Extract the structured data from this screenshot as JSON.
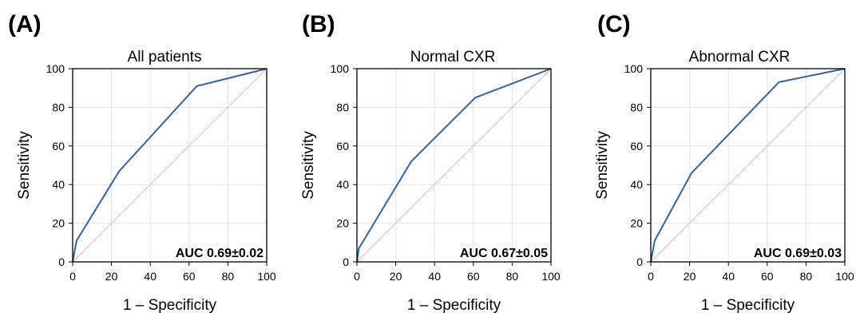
{
  "chart_data": [
    {
      "type": "line",
      "panel_letter": "(A)",
      "title": "All patients",
      "xlabel": "1 – Specificity",
      "ylabel": "Sensitivity",
      "xlim": [
        0,
        100
      ],
      "ylim": [
        0,
        100
      ],
      "x_ticks": [
        "0",
        "20",
        "40",
        "60",
        "80",
        "100"
      ],
      "y_ticks": [
        "0",
        "20",
        "40",
        "60",
        "80",
        "100"
      ],
      "grid": true,
      "series": [
        {
          "x": [
            0,
            2,
            24,
            64,
            100
          ],
          "y": [
            0,
            11,
            47,
            91,
            100
          ],
          "color": "#2f63a8"
        }
      ],
      "reference_line": {
        "x": [
          0,
          100
        ],
        "y": [
          0,
          100
        ],
        "color": "#e8b4bc"
      },
      "annotation": "AUC 0.69±0.02"
    },
    {
      "type": "line",
      "panel_letter": "(B)",
      "title": "Normal CXR",
      "xlabel": "1 – Specificity",
      "ylabel": "Sensitivity",
      "xlim": [
        0,
        100
      ],
      "ylim": [
        0,
        100
      ],
      "x_ticks": [
        "0",
        "20",
        "40",
        "60",
        "80",
        "100"
      ],
      "y_ticks": [
        "0",
        "20",
        "40",
        "60",
        "80",
        "100"
      ],
      "grid": true,
      "series": [
        {
          "x": [
            0,
            1,
            28,
            61,
            100
          ],
          "y": [
            0,
            7,
            52,
            85,
            100
          ],
          "color": "#2f63a8"
        }
      ],
      "reference_line": {
        "x": [
          0,
          100
        ],
        "y": [
          0,
          100
        ],
        "color": "#e8b4bc"
      },
      "annotation": "AUC 0.67±0.05"
    },
    {
      "type": "line",
      "panel_letter": "(C)",
      "title": "Abnormal CXR",
      "xlabel": "1 – Specificity",
      "ylabel": "Sensitivity",
      "xlim": [
        0,
        100
      ],
      "ylim": [
        0,
        100
      ],
      "x_ticks": [
        "0",
        "20",
        "40",
        "60",
        "80",
        "100"
      ],
      "y_ticks": [
        "0",
        "20",
        "40",
        "60",
        "80",
        "100"
      ],
      "grid": true,
      "series": [
        {
          "x": [
            0,
            2,
            21,
            66,
            100
          ],
          "y": [
            0,
            11,
            46,
            93,
            100
          ],
          "color": "#2f63a8"
        }
      ],
      "reference_line": {
        "x": [
          0,
          100
        ],
        "y": [
          0,
          100
        ],
        "color": "#e8b4bc"
      },
      "annotation": "AUC 0.69±0.03"
    }
  ]
}
